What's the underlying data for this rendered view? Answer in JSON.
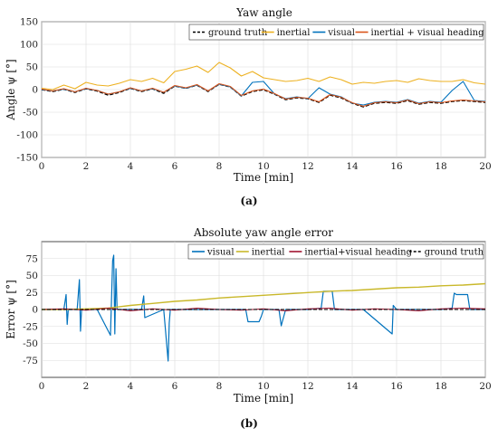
{
  "chart_data": [
    {
      "type": "line",
      "title": "Yaw angle",
      "xlabel": "Time [min]",
      "ylabel": "Angle ψ [°]",
      "caption": "(a)",
      "xlim": [
        0,
        20
      ],
      "ylim": [
        -150,
        150
      ],
      "xticks": [
        0,
        2,
        4,
        6,
        8,
        10,
        12,
        14,
        16,
        18,
        20
      ],
      "yticks": [
        -150,
        -100,
        -50,
        0,
        50,
        100,
        150
      ],
      "grid": true,
      "legend_position": "top-right",
      "series": [
        {
          "name": "ground truth",
          "color": "#000000",
          "dashed": true,
          "width": 1.6,
          "x": [
            0,
            0.5,
            1,
            1.5,
            2,
            2.5,
            3,
            3.5,
            4,
            4.5,
            5,
            5.5,
            6,
            6.5,
            7,
            7.5,
            8,
            8.5,
            9,
            9.5,
            10,
            10.5,
            11,
            11.5,
            12,
            12.5,
            13,
            13.5,
            14,
            14.5,
            15,
            15.5,
            16,
            16.5,
            17,
            17.5,
            18,
            18.5,
            19,
            19.5,
            20
          ],
          "values": [
            0,
            -4,
            1,
            -6,
            2,
            -3,
            -12,
            -6,
            3,
            -4,
            2,
            -8,
            8,
            3,
            10,
            -4,
            12,
            6,
            -14,
            -4,
            0,
            -10,
            -22,
            -18,
            -20,
            -28,
            -12,
            -18,
            -30,
            -38,
            -30,
            -28,
            -30,
            -24,
            -32,
            -28,
            -30,
            -26,
            -24,
            -26,
            -28
          ]
        },
        {
          "name": "inertial",
          "color": "#EDB120",
          "dashed": false,
          "width": 1.1,
          "x": [
            0,
            0.5,
            1,
            1.5,
            2,
            2.5,
            3,
            3.5,
            4,
            4.5,
            5,
            5.5,
            6,
            6.5,
            7,
            7.5,
            8,
            8.5,
            9,
            9.5,
            10,
            10.5,
            11,
            11.5,
            12,
            12.5,
            13,
            13.5,
            14,
            14.5,
            15,
            15.5,
            16,
            16.5,
            17,
            17.5,
            18,
            18.5,
            19,
            19.5,
            20
          ],
          "values": [
            3,
            0,
            10,
            2,
            16,
            10,
            8,
            14,
            22,
            18,
            25,
            15,
            40,
            45,
            52,
            38,
            60,
            48,
            30,
            40,
            26,
            22,
            18,
            20,
            25,
            18,
            28,
            22,
            12,
            16,
            14,
            18,
            20,
            16,
            24,
            20,
            18,
            18,
            22,
            15,
            12
          ]
        },
        {
          "name": "visual",
          "color": "#0072BD",
          "dashed": false,
          "width": 1.1,
          "x": [
            0,
            0.5,
            1,
            1.5,
            2,
            2.5,
            3,
            3.5,
            4,
            4.5,
            5,
            5.5,
            6,
            6.5,
            7,
            7.5,
            8,
            8.5,
            9,
            9.5,
            10,
            10.5,
            11,
            11.5,
            12,
            12.5,
            13,
            13.5,
            14,
            14.5,
            15,
            15.5,
            16,
            16.5,
            17,
            17.5,
            18,
            18.5,
            19,
            19.5,
            20
          ],
          "values": [
            0,
            -3,
            1,
            -5,
            2,
            -2,
            -10,
            -5,
            3,
            -3,
            2,
            -6,
            8,
            3,
            10,
            -3,
            12,
            6,
            -14,
            16,
            18,
            -10,
            -20,
            -16,
            -20,
            4,
            -10,
            -16,
            -30,
            -34,
            -28,
            -26,
            -28,
            -22,
            -30,
            -26,
            -28,
            -2,
            18,
            -24,
            -26
          ]
        },
        {
          "name": "inertial + visual heading",
          "color": "#D95319",
          "dashed": false,
          "width": 1.1,
          "x": [
            0,
            0.5,
            1,
            1.5,
            2,
            2.5,
            3,
            3.5,
            4,
            4.5,
            5,
            5.5,
            6,
            6.5,
            7,
            7.5,
            8,
            8.5,
            9,
            9.5,
            10,
            10.5,
            11,
            11.5,
            12,
            12.5,
            13,
            13.5,
            14,
            14.5,
            15,
            15.5,
            16,
            16.5,
            17,
            17.5,
            18,
            18.5,
            19,
            19.5,
            20
          ],
          "values": [
            1,
            -3,
            2,
            -5,
            3,
            -2,
            -10,
            -5,
            4,
            -3,
            3,
            -6,
            9,
            4,
            11,
            -3,
            13,
            7,
            -13,
            -3,
            1,
            -9,
            -21,
            -17,
            -19,
            -27,
            -11,
            -17,
            -29,
            -37,
            -29,
            -27,
            -29,
            -23,
            -31,
            -27,
            -29,
            -25,
            -23,
            -25,
            -27
          ]
        }
      ]
    },
    {
      "type": "line",
      "title": "Absolute yaw angle error",
      "xlabel": "Time [min]",
      "ylabel": "Error ψ [°]",
      "caption": "(b)",
      "xlim": [
        0,
        20
      ],
      "ylim": [
        -100,
        100
      ],
      "xticks": [
        0,
        2,
        4,
        6,
        8,
        10,
        12,
        14,
        16,
        18,
        20
      ],
      "yticks": [
        -75,
        -50,
        -25,
        0,
        25,
        50,
        75
      ],
      "grid": true,
      "legend_position": "top-right",
      "series": [
        {
          "name": "visual",
          "color": "#0072BD",
          "dashed": false,
          "width": 1.2,
          "x": [
            0,
            1,
            1.1,
            1.15,
            1.2,
            1.6,
            1.7,
            1.75,
            1.8,
            2.5,
            3.1,
            3.2,
            3.25,
            3.3,
            3.35,
            3.4,
            4,
            4.5,
            4.6,
            4.65,
            5.5,
            5.7,
            5.75,
            5.8,
            6.5,
            7,
            8,
            9.2,
            9.3,
            9.8,
            9.9,
            10,
            10.7,
            10.8,
            10.85,
            11,
            12,
            12.6,
            12.7,
            13.1,
            13.2,
            14,
            14.5,
            15.8,
            15.85,
            16,
            17,
            18,
            18.5,
            18.6,
            18.7,
            19.2,
            19.3,
            19.5,
            20
          ],
          "values": [
            0,
            0,
            22,
            -22,
            0,
            0,
            44,
            -32,
            0,
            0,
            -38,
            72,
            80,
            -36,
            60,
            0,
            0,
            0,
            20,
            -12,
            0,
            -76,
            -20,
            0,
            0,
            0,
            0,
            0,
            -18,
            -18,
            -10,
            0,
            0,
            -24,
            -18,
            0,
            0,
            2,
            27,
            27,
            0,
            0,
            0,
            -36,
            6,
            0,
            0,
            0,
            2,
            24,
            22,
            22,
            0,
            0,
            0
          ]
        },
        {
          "name": "inertial",
          "color": "#C9B82A",
          "dashed": false,
          "width": 1.4,
          "x": [
            0,
            1,
            2,
            3,
            4,
            5,
            6,
            7,
            8,
            9,
            10,
            11,
            12,
            13,
            14,
            15,
            16,
            17,
            18,
            19,
            20
          ],
          "values": [
            0,
            0,
            1,
            2,
            6,
            9,
            12,
            14,
            17,
            19,
            21,
            23,
            25,
            27,
            28,
            30,
            32,
            33,
            35,
            36,
            38
          ]
        },
        {
          "name": "inertial+visual heading",
          "color": "#A2142F",
          "dashed": false,
          "width": 1.0,
          "x": [
            0,
            1,
            2,
            3,
            4,
            5,
            6,
            7,
            8,
            9,
            10,
            11,
            12,
            13,
            14,
            15,
            16,
            17,
            18,
            19,
            20
          ],
          "values": [
            0,
            1,
            -1,
            2,
            -2,
            1,
            -1,
            2,
            0,
            -1,
            1,
            -2,
            1,
            2,
            -1,
            1,
            0,
            -2,
            1,
            2,
            1
          ]
        },
        {
          "name": "ground truth",
          "color": "#000000",
          "dashed": true,
          "width": 1.0,
          "x": [
            0,
            20
          ],
          "values": [
            0,
            0
          ]
        }
      ]
    }
  ]
}
